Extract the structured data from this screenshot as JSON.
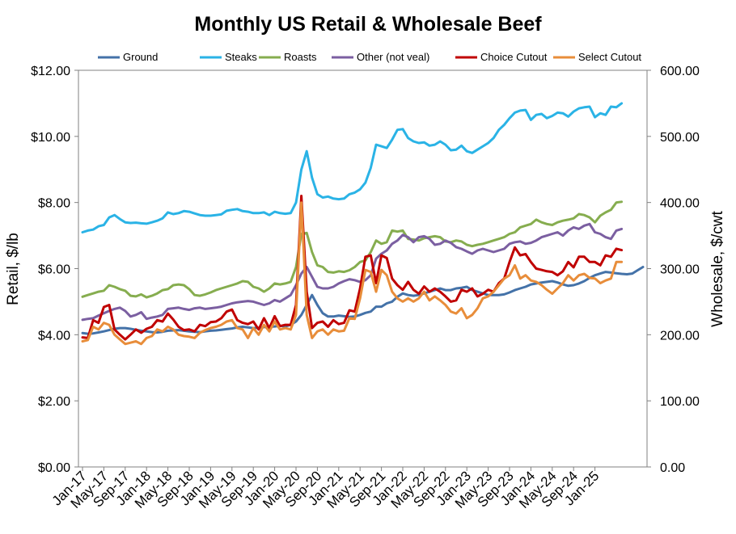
{
  "chart_data": {
    "type": "line",
    "title": "Monthly US Retail & Wholesale Beef",
    "ylabel": "Retail, $/lb",
    "y2label": "Wholesale, $/cwt",
    "ylim": [
      0,
      12
    ],
    "y2lim": [
      0,
      600
    ],
    "yticks": [
      "$0.00",
      "$2.00",
      "$4.00",
      "$6.00",
      "$8.00",
      "$10.00",
      "$12.00"
    ],
    "y2ticks": [
      "0.00",
      "100.00",
      "200.00",
      "300.00",
      "400.00",
      "500.00",
      "600.00"
    ],
    "xticks": [
      "Jan-17",
      "May-17",
      "Sep-17",
      "Jan-18",
      "May-18",
      "Sep-18",
      "Jan-19",
      "May-19",
      "Sep-19",
      "Jan-20",
      "May-20",
      "Sep-20",
      "Jan-21",
      "May-21",
      "Sep-21",
      "Jan-22",
      "May-22",
      "Sep-22",
      "Jan-23",
      "May-23",
      "Sep-23",
      "Jan-24",
      "May-24",
      "Sep-24",
      "Jan-25"
    ],
    "legend_position": "top",
    "grid": false,
    "x_start": "Jan-17",
    "n_points": 102,
    "series": [
      {
        "name": "Ground",
        "axis": "left",
        "color": "#4472a8",
        "values": [
          4.05,
          4.03,
          4.04,
          4.07,
          4.1,
          4.14,
          4.18,
          4.2,
          4.2,
          4.18,
          4.15,
          4.12,
          4.1,
          4.08,
          4.07,
          4.09,
          4.12,
          4.13,
          4.14,
          4.12,
          4.1,
          4.09,
          4.08,
          4.1,
          4.12,
          4.13,
          4.15,
          4.17,
          4.19,
          4.22,
          4.24,
          4.22,
          4.2,
          4.21,
          4.23,
          4.24,
          4.25,
          4.27,
          4.25,
          4.3,
          4.4,
          4.6,
          4.9,
          5.2,
          4.9,
          4.65,
          4.55,
          4.55,
          4.58,
          4.56,
          4.54,
          4.55,
          4.6,
          4.66,
          4.7,
          4.85,
          4.85,
          4.95,
          5.0,
          5.15,
          5.25,
          5.2,
          5.18,
          5.2,
          5.25,
          5.3,
          5.35,
          5.4,
          5.35,
          5.35,
          5.4,
          5.42,
          5.45,
          5.35,
          5.3,
          5.25,
          5.2,
          5.2,
          5.2,
          5.22,
          5.28,
          5.35,
          5.4,
          5.45,
          5.52,
          5.55,
          5.58,
          5.6,
          5.62,
          5.58,
          5.52,
          5.48,
          5.5,
          5.55,
          5.62,
          5.72,
          5.8,
          5.85,
          5.9,
          5.88,
          5.86,
          5.84,
          5.83,
          5.85,
          5.95,
          6.05
        ]
      },
      {
        "name": "Steaks",
        "axis": "left",
        "color": "#2ab3e6",
        "values": [
          7.1,
          7.15,
          7.18,
          7.28,
          7.32,
          7.55,
          7.62,
          7.5,
          7.4,
          7.38,
          7.39,
          7.37,
          7.36,
          7.4,
          7.45,
          7.52,
          7.7,
          7.65,
          7.68,
          7.74,
          7.72,
          7.67,
          7.62,
          7.6,
          7.6,
          7.62,
          7.64,
          7.75,
          7.78,
          7.8,
          7.74,
          7.72,
          7.68,
          7.68,
          7.7,
          7.62,
          7.72,
          7.68,
          7.66,
          7.68,
          8.0,
          9.0,
          9.55,
          8.75,
          8.25,
          8.15,
          8.18,
          8.12,
          8.1,
          8.12,
          8.25,
          8.3,
          8.4,
          8.6,
          9.05,
          9.75,
          9.7,
          9.65,
          9.9,
          10.2,
          10.22,
          9.95,
          9.85,
          9.8,
          9.82,
          9.72,
          9.75,
          9.85,
          9.75,
          9.58,
          9.6,
          9.72,
          9.55,
          9.5,
          9.6,
          9.7,
          9.8,
          9.95,
          10.2,
          10.35,
          10.55,
          10.72,
          10.78,
          10.8,
          10.5,
          10.65,
          10.68,
          10.55,
          10.62,
          10.72,
          10.7,
          10.6,
          10.75,
          10.85,
          10.88,
          10.9,
          10.58,
          10.7,
          10.65,
          10.9,
          10.88,
          11.0
        ]
      },
      {
        "name": "Roasts",
        "axis": "left",
        "color": "#86ad4f",
        "values": [
          5.15,
          5.2,
          5.25,
          5.3,
          5.33,
          5.5,
          5.45,
          5.38,
          5.33,
          5.18,
          5.16,
          5.22,
          5.13,
          5.18,
          5.25,
          5.35,
          5.38,
          5.5,
          5.52,
          5.5,
          5.38,
          5.2,
          5.18,
          5.22,
          5.28,
          5.35,
          5.4,
          5.45,
          5.5,
          5.55,
          5.62,
          5.6,
          5.45,
          5.4,
          5.3,
          5.4,
          5.55,
          5.52,
          5.55,
          5.6,
          6.05,
          7.05,
          7.08,
          6.5,
          6.1,
          6.05,
          5.9,
          5.88,
          5.92,
          5.9,
          5.95,
          6.05,
          6.2,
          6.25,
          6.5,
          6.85,
          6.75,
          6.8,
          7.15,
          7.12,
          7.15,
          6.9,
          6.88,
          6.85,
          6.92,
          6.95,
          6.98,
          6.95,
          6.82,
          6.8,
          6.85,
          6.82,
          6.72,
          6.68,
          6.72,
          6.75,
          6.8,
          6.85,
          6.9,
          6.95,
          7.05,
          7.1,
          7.25,
          7.3,
          7.35,
          7.48,
          7.4,
          7.35,
          7.32,
          7.4,
          7.45,
          7.48,
          7.52,
          7.65,
          7.62,
          7.55,
          7.4,
          7.6,
          7.7,
          7.78,
          8.0,
          8.02
        ]
      },
      {
        "name": "Other (not veal)",
        "axis": "left",
        "color": "#7b5fa1",
        "values": [
          4.45,
          4.48,
          4.5,
          4.58,
          4.65,
          4.72,
          4.78,
          4.82,
          4.72,
          4.55,
          4.6,
          4.68,
          4.48,
          4.52,
          4.55,
          4.6,
          4.78,
          4.8,
          4.82,
          4.78,
          4.75,
          4.8,
          4.82,
          4.78,
          4.8,
          4.82,
          4.85,
          4.9,
          4.95,
          4.98,
          5.0,
          5.02,
          5.0,
          4.95,
          4.9,
          4.95,
          5.05,
          5.0,
          5.1,
          5.2,
          5.5,
          5.85,
          6.05,
          5.75,
          5.45,
          5.4,
          5.4,
          5.45,
          5.55,
          5.62,
          5.68,
          5.65,
          5.6,
          5.65,
          5.8,
          6.3,
          6.45,
          6.55,
          6.75,
          6.85,
          7.02,
          6.95,
          6.8,
          6.95,
          6.98,
          6.9,
          6.72,
          6.75,
          6.85,
          6.78,
          6.65,
          6.6,
          6.52,
          6.45,
          6.55,
          6.6,
          6.55,
          6.5,
          6.55,
          6.6,
          6.75,
          6.8,
          6.82,
          6.75,
          6.78,
          6.85,
          6.95,
          7.0,
          7.05,
          7.1,
          7.0,
          7.15,
          7.25,
          7.2,
          7.3,
          7.35,
          7.1,
          7.05,
          6.95,
          6.9,
          7.15,
          7.2
        ]
      },
      {
        "name": "Choice Cutout",
        "axis": "right",
        "color": "#c00000",
        "values": [
          196,
          195,
          222,
          218,
          242,
          245,
          208,
          200,
          193,
          200,
          208,
          203,
          209,
          212,
          222,
          220,
          232,
          223,
          212,
          207,
          208,
          205,
          215,
          213,
          219,
          220,
          225,
          235,
          238,
          222,
          218,
          216,
          220,
          208,
          225,
          210,
          228,
          213,
          215,
          215,
          245,
          410,
          265,
          210,
          218,
          220,
          212,
          222,
          216,
          218,
          237,
          235,
          270,
          318,
          320,
          278,
          320,
          316,
          285,
          275,
          268,
          280,
          268,
          262,
          273,
          265,
          270,
          265,
          258,
          250,
          252,
          268,
          265,
          270,
          258,
          262,
          268,
          265,
          278,
          285,
          310,
          332,
          320,
          322,
          310,
          300,
          298,
          296,
          295,
          290,
          296,
          310,
          302,
          318,
          318,
          310,
          310,
          305,
          320,
          318,
          330,
          328
        ]
      },
      {
        "name": "Select Cutout",
        "axis": "right",
        "color": "#e88d3a",
        "values": [
          190,
          192,
          212,
          208,
          218,
          215,
          200,
          193,
          186,
          188,
          190,
          186,
          195,
          198,
          208,
          205,
          212,
          208,
          200,
          198,
          197,
          195,
          203,
          207,
          210,
          212,
          215,
          220,
          222,
          210,
          208,
          195,
          210,
          200,
          215,
          205,
          220,
          208,
          210,
          208,
          230,
          400,
          230,
          195,
          205,
          208,
          200,
          208,
          205,
          206,
          225,
          224,
          255,
          298,
          295,
          265,
          298,
          290,
          265,
          255,
          250,
          255,
          250,
          255,
          265,
          252,
          258,
          252,
          245,
          235,
          232,
          240,
          225,
          230,
          240,
          255,
          258,
          265,
          275,
          285,
          290,
          305,
          285,
          290,
          282,
          280,
          275,
          268,
          262,
          270,
          278,
          290,
          282,
          290,
          292,
          286,
          285,
          278,
          282,
          285,
          310,
          310
        ]
      }
    ]
  }
}
